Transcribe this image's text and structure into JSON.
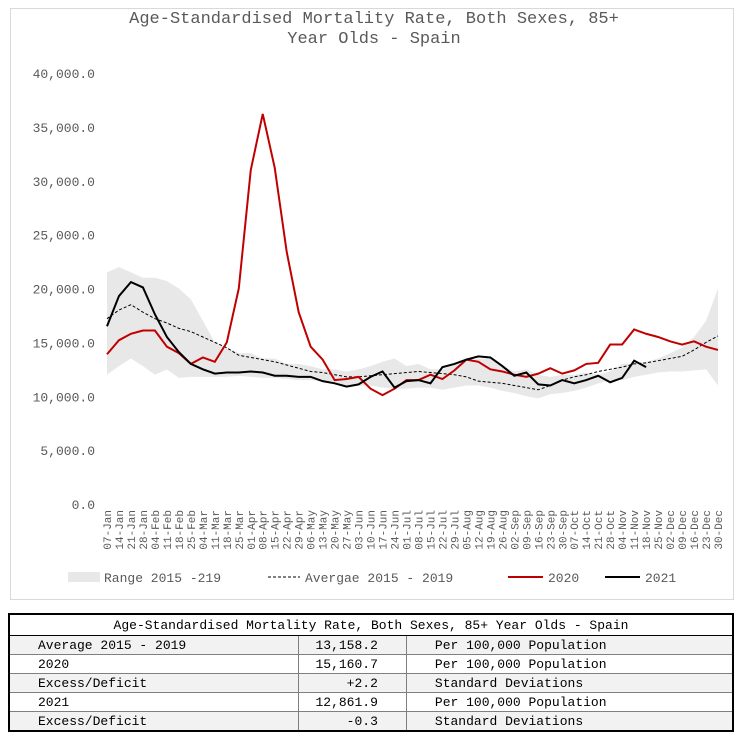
{
  "chart_data": {
    "type": "line",
    "title": "Age-Standardised Mortality Rate, Both Sexes, 85+ Year Olds - Spain",
    "categories": [
      "07-Jan",
      "14-Jan",
      "21-Jan",
      "28-Jan",
      "04-Feb",
      "11-Feb",
      "18-Feb",
      "25-Feb",
      "04-Mar",
      "11-Mar",
      "18-Mar",
      "25-Mar",
      "01-Apr",
      "08-Apr",
      "15-Apr",
      "22-Apr",
      "29-Apr",
      "06-May",
      "13-May",
      "20-May",
      "27-May",
      "03-Jun",
      "10-Jun",
      "17-Jun",
      "24-Jun",
      "01-Jul",
      "08-Jul",
      "15-Jul",
      "22-Jul",
      "29-Jul",
      "05-Aug",
      "12-Aug",
      "19-Aug",
      "26-Aug",
      "02-Sep",
      "09-Sep",
      "16-Sep",
      "23-Sep",
      "30-Sep",
      "07-Oct",
      "14-Oct",
      "21-Oct",
      "28-Oct",
      "04-Nov",
      "11-Nov",
      "18-Nov",
      "25-Nov",
      "02-Dec",
      "09-Dec",
      "16-Dec",
      "23-Dec",
      "30-Dec"
    ],
    "range": {
      "name": "Range 2015 -219",
      "color": "#e8e8e8",
      "upper": [
        21500,
        22000,
        21500,
        21000,
        21000,
        20700,
        20000,
        19000,
        17000,
        15000,
        14500,
        14000,
        14000,
        13500,
        13500,
        13000,
        13000,
        12800,
        12500,
        12500,
        12300,
        12500,
        12800,
        13200,
        13500,
        12800,
        13000,
        12500,
        12500,
        13000,
        13200,
        13500,
        13500,
        12800,
        12300,
        12500,
        12000,
        11800,
        12000,
        12000,
        12200,
        12000,
        12300,
        13000,
        13000,
        13200,
        13500,
        14000,
        14500,
        15500,
        17000,
        20000
      ],
      "lower": [
        12000,
        12800,
        13500,
        12800,
        12000,
        12500,
        11700,
        11800,
        11800,
        11800,
        11800,
        11900,
        11800,
        11700,
        11700,
        11600,
        11500,
        11500,
        11400,
        11200,
        11000,
        11000,
        11000,
        10800,
        10700,
        10700,
        10800,
        10800,
        10600,
        10800,
        11000,
        11000,
        10800,
        10500,
        10300,
        10000,
        9800,
        10200,
        10300,
        10500,
        10800,
        11200,
        11500,
        11500,
        11800,
        12000,
        12200,
        12300,
        12300,
        12400,
        12500,
        11000
      ]
    },
    "series": [
      {
        "name": "Avergae 2015 - 2019",
        "color": "#000000",
        "dashed": true,
        "values": [
          17200,
          18000,
          18500,
          17800,
          17200,
          16800,
          16300,
          16000,
          15500,
          15000,
          14500,
          13800,
          13600,
          13400,
          13200,
          12900,
          12600,
          12300,
          12200,
          12000,
          11800,
          11800,
          11900,
          12000,
          12100,
          12200,
          12300,
          12200,
          12100,
          12000,
          11800,
          11400,
          11300,
          11200,
          11000,
          10800,
          10600,
          11000,
          11500,
          11800,
          12000,
          12300,
          12500,
          12700,
          13000,
          13100,
          13300,
          13500,
          13700,
          14300,
          15000,
          15600
        ]
      },
      {
        "name": "2020",
        "color": "#c00000",
        "dashed": false,
        "values": [
          13900,
          15200,
          15800,
          16100,
          16100,
          14600,
          14000,
          13000,
          13600,
          13200,
          15000,
          20000,
          31000,
          36200,
          31200,
          23400,
          17800,
          14600,
          13400,
          11500,
          11600,
          11800,
          10700,
          10100,
          10700,
          11500,
          11500,
          12000,
          11600,
          12400,
          13400,
          13200,
          12500,
          12300,
          12000,
          11800,
          12100,
          12600,
          12100,
          12400,
          13000,
          13100,
          14800,
          14800,
          16200,
          15800,
          15500,
          15100,
          14800,
          15100,
          14600,
          14300
        ]
      },
      {
        "name": "2021",
        "color": "#000000",
        "dashed": false,
        "values": [
          16500,
          19300,
          20600,
          20100,
          17600,
          15500,
          14100,
          13000,
          12500,
          12100,
          12200,
          12200,
          12300,
          12200,
          11900,
          11900,
          11800,
          11800,
          11400,
          11200,
          10900,
          11100,
          11800,
          12300,
          10800,
          11400,
          11500,
          11200,
          12700,
          13000,
          13400,
          13700,
          13600,
          12800,
          11900,
          12200,
          11100,
          11000,
          11500,
          11200,
          11500,
          11900,
          11300,
          11700,
          13300,
          12700,
          null,
          null,
          null,
          null,
          null,
          null
        ]
      }
    ],
    "ylim": [
      0,
      40000
    ],
    "yticks": [
      {
        "value": 0,
        "label": "0.0"
      },
      {
        "value": 5000,
        "label": "5,000.0"
      },
      {
        "value": 10000,
        "label": "10,000.0"
      },
      {
        "value": 15000,
        "label": "15,000.0"
      },
      {
        "value": 20000,
        "label": "20,000.0"
      },
      {
        "value": 25000,
        "label": "25,000.0"
      },
      {
        "value": 30000,
        "label": "30,000.0"
      },
      {
        "value": 35000,
        "label": "35,000.0"
      },
      {
        "value": 40000,
        "label": "40,000.0"
      }
    ],
    "grid": false
  },
  "table": {
    "title": "Age-Standardised Mortality Rate, Both Sexes, 85+ Year Olds - Spain",
    "rows": [
      [
        "Average 2015 - 2019",
        "13,158.2",
        "Per 100,000 Population"
      ],
      [
        "2020",
        "15,160.7",
        "Per 100,000 Population"
      ],
      [
        "Excess/Deficit",
        "+2.2",
        "Standard Deviations"
      ],
      [
        "2021",
        "12,861.9",
        "Per 100,000 Population"
      ],
      [
        "Excess/Deficit",
        "-0.3",
        "Standard Deviations"
      ]
    ]
  }
}
